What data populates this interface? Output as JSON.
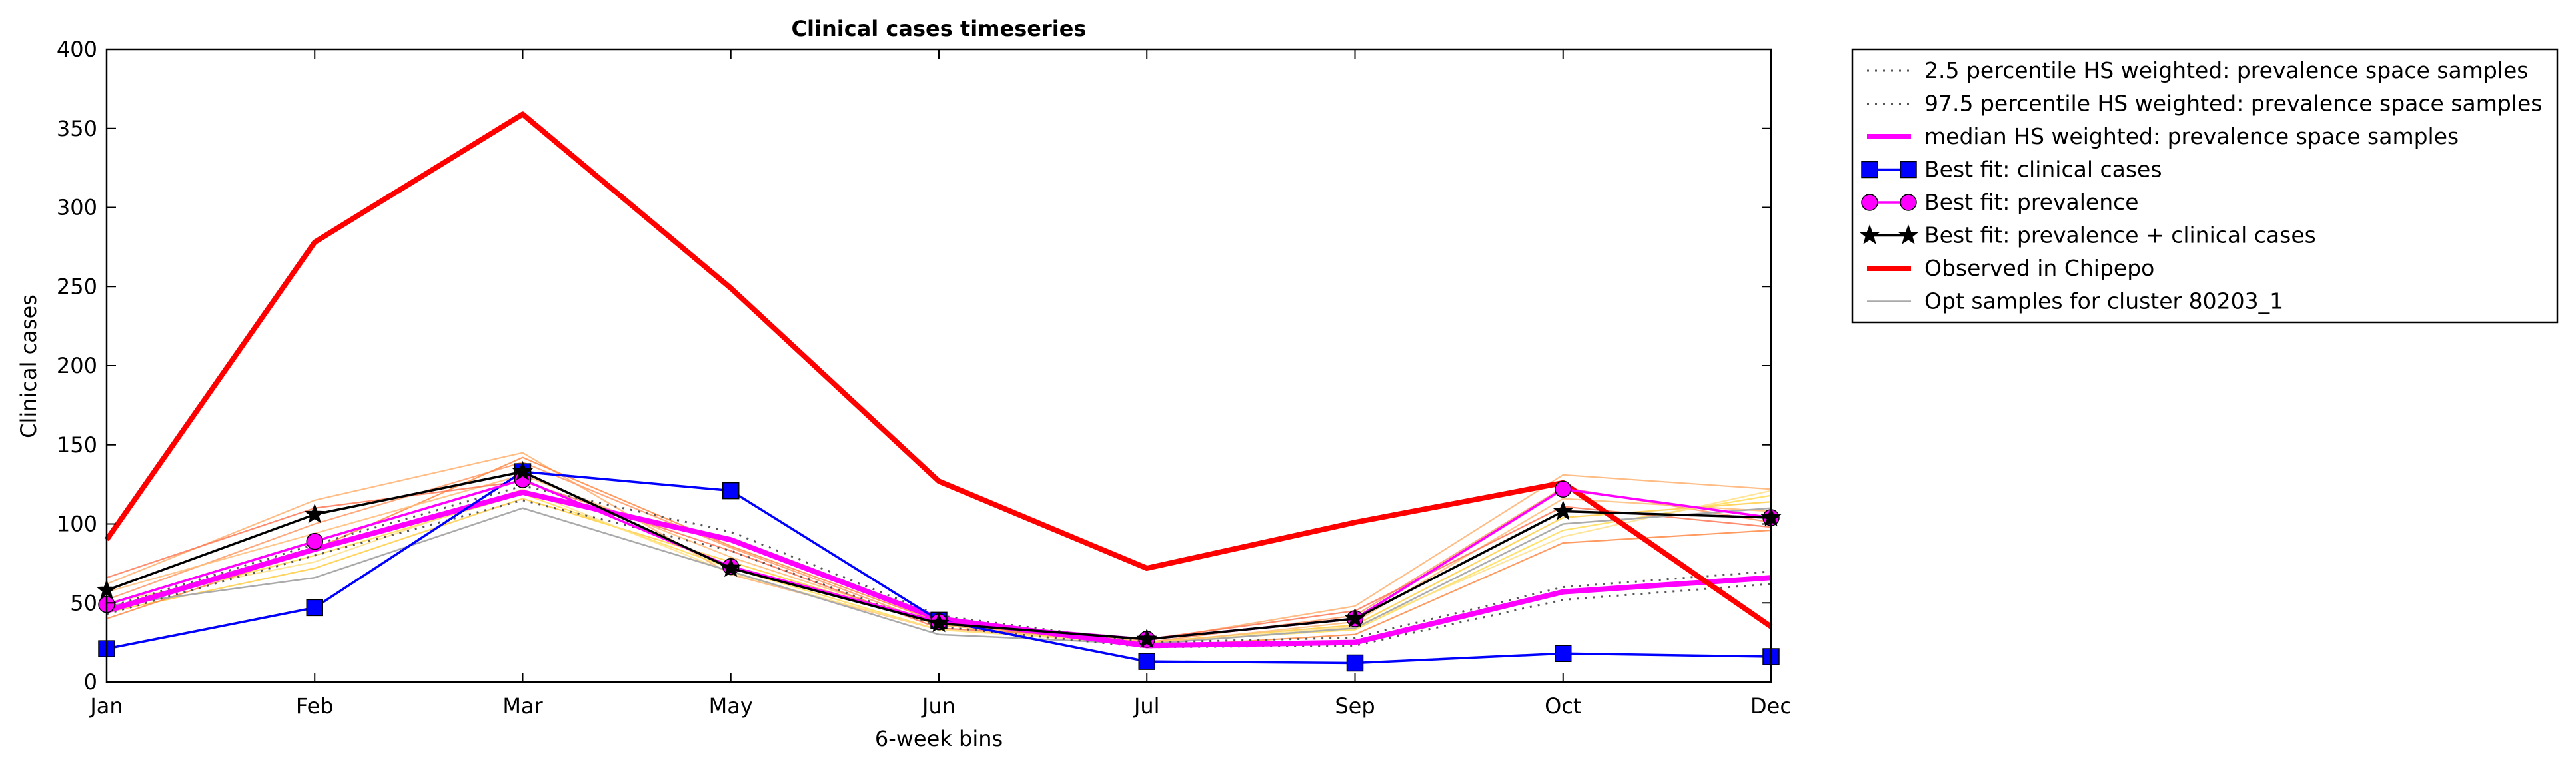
{
  "chart_data": {
    "type": "line",
    "title": "Clinical cases timeseries",
    "xlabel": "6-week bins",
    "ylabel": "Clinical cases",
    "categories": [
      "Jan",
      "Feb",
      "Mar",
      "May",
      "Jun",
      "Jul",
      "Sep",
      "Oct",
      "Dec"
    ],
    "yticks": [
      "0",
      "50",
      "100",
      "150",
      "200",
      "250",
      "300",
      "350",
      "400"
    ],
    "ylim": [
      0,
      400
    ],
    "grid": false,
    "legend_position": "outside-top-right",
    "series": [
      {
        "name": "2.5 percentile HS weighted: prevalence space samples",
        "color": "#555555",
        "style": "dotted",
        "values": [
          43,
          80,
          115,
          83,
          35,
          22,
          23,
          52,
          62
        ]
      },
      {
        "name": "97.5 percentile HS weighted: prevalence space samples",
        "color": "#555555",
        "style": "dotted",
        "values": [
          47,
          87,
          124,
          95,
          42,
          25,
          28,
          60,
          70
        ]
      },
      {
        "name": "median HS weighted: prevalence space samples",
        "color": "#ff00ff",
        "style": "solid-thick",
        "values": [
          45,
          84,
          120,
          90,
          40,
          23,
          25,
          57,
          66
        ]
      },
      {
        "name": "Best fit: clinical cases",
        "color": "#0000ff",
        "style": "solid",
        "marker": "square",
        "values": [
          21,
          47,
          133,
          121,
          39,
          13,
          12,
          18,
          16
        ]
      },
      {
        "name": "Best fit: prevalence",
        "color": "#ff00ff",
        "style": "solid",
        "marker": "circle",
        "values": [
          49,
          89,
          128,
          73,
          38,
          27,
          40,
          122,
          104
        ]
      },
      {
        "name": "Best fit: prevalence + clinical cases",
        "color": "#000000",
        "style": "solid",
        "marker": "star",
        "values": [
          58,
          106,
          133,
          72,
          37,
          27,
          40,
          108,
          104
        ]
      },
      {
        "name": "Observed in Chipepo",
        "color": "#ff0000",
        "style": "solid-thick",
        "values": [
          90,
          278,
          359,
          249,
          127,
          72,
          101,
          126,
          35
        ]
      },
      {
        "name": "Opt samples for cluster 80203_1",
        "color": "#aaaaaa",
        "style": "solid-thin",
        "values": [
          48,
          66,
          110,
          70,
          30,
          24,
          34,
          100,
          110
        ]
      }
    ],
    "sample_series": [
      {
        "color": "#ffb070",
        "values": [
          62,
          115,
          145,
          68,
          33,
          26,
          48,
          131,
          122
        ]
      },
      {
        "color": "#ff9966",
        "values": [
          52,
          100,
          139,
          85,
          36,
          25,
          42,
          123,
          101
        ]
      },
      {
        "color": "#ffcc44",
        "values": [
          44,
          72,
          116,
          76,
          36,
          25,
          36,
          104,
          114
        ]
      },
      {
        "color": "#ffdd55",
        "values": [
          46,
          80,
          119,
          72,
          33,
          25,
          33,
          96,
          118
        ]
      },
      {
        "color": "#ff8844",
        "values": [
          40,
          84,
          142,
          86,
          38,
          22,
          30,
          88,
          96
        ]
      },
      {
        "color": "#ffbb77",
        "values": [
          57,
          94,
          131,
          79,
          36,
          24,
          38,
          116,
          108
        ]
      },
      {
        "color": "#ff7755",
        "values": [
          66,
          110,
          127,
          83,
          34,
          27,
          45,
          111,
          98
        ]
      },
      {
        "color": "#ffe08a",
        "values": [
          50,
          76,
          122,
          69,
          33,
          24,
          35,
          92,
          121
        ]
      }
    ]
  }
}
